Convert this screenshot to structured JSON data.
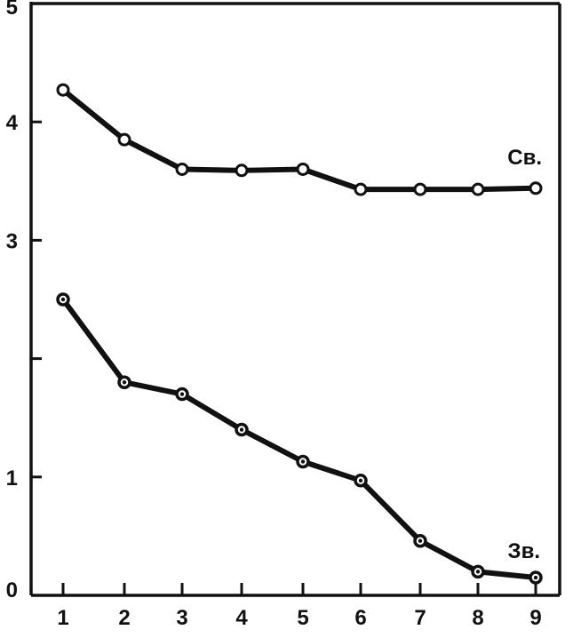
{
  "chart_data": {
    "type": "line",
    "x": [
      1,
      2,
      3,
      4,
      5,
      6,
      7,
      8,
      9
    ],
    "xlim": [
      1,
      9
    ],
    "ylim": [
      0,
      5
    ],
    "x_ticks": [
      "1",
      "2",
      "3",
      "4",
      "5",
      "6",
      "7",
      "8",
      "9"
    ],
    "y_ticks": [
      0,
      1,
      2,
      3,
      4,
      5
    ],
    "y_tick_labels": [
      "0",
      "1",
      "",
      "3",
      "4",
      "5"
    ],
    "grid": false,
    "series": [
      {
        "name": "Св.",
        "marker": "open-circle",
        "values": [
          4.27,
          3.85,
          3.6,
          3.59,
          3.6,
          3.43,
          3.43,
          3.43,
          3.44
        ]
      },
      {
        "name": "Зв.",
        "marker": "dotted-circle",
        "values": [
          2.5,
          1.8,
          1.7,
          1.4,
          1.13,
          0.97,
          0.46,
          0.2,
          0.15
        ]
      }
    ]
  }
}
